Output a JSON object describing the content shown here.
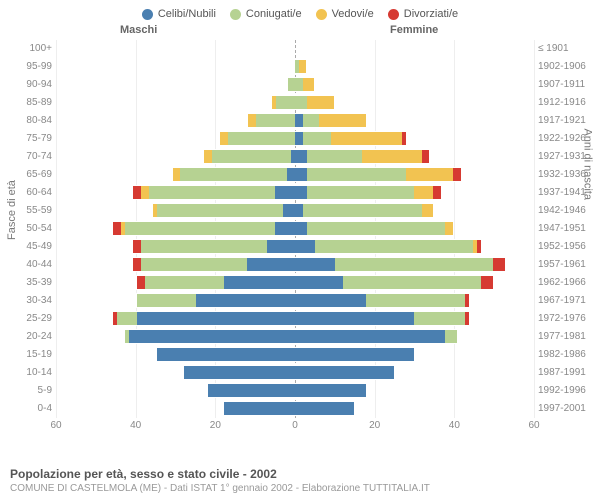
{
  "legend": [
    {
      "label": "Celibi/Nubili",
      "color": "#4a7fb0"
    },
    {
      "label": "Coniugati/e",
      "color": "#b6d292"
    },
    {
      "label": "Vedovi/e",
      "color": "#f2c351"
    },
    {
      "label": "Divorziati/e",
      "color": "#d63a32"
    }
  ],
  "headers": {
    "male": "Maschi",
    "female": "Femmine"
  },
  "axis_titles": {
    "left": "Fasce di età",
    "right": "Anni di nascita"
  },
  "xaxis": {
    "max": 60,
    "ticks": [
      60,
      40,
      20,
      0,
      20,
      40,
      60
    ]
  },
  "footer": {
    "line1": "Popolazione per età, sesso e stato civile - 2002",
    "line2": "COMUNE DI CASTELMOLA (ME) - Dati ISTAT 1° gennaio 2002 - Elaborazione TUTTITALIA.IT"
  },
  "colors": {
    "single": "#4a7fb0",
    "married": "#b6d292",
    "widowed": "#f2c351",
    "divorced": "#d63a32",
    "grid": "#eeeeee",
    "centerline": "#aaaaaa",
    "background": "#ffffff"
  },
  "rows": [
    {
      "age": "100+",
      "birth": "≤ 1901",
      "m": [
        0,
        0,
        0,
        0
      ],
      "f": [
        0,
        0,
        0,
        0
      ]
    },
    {
      "age": "95-99",
      "birth": "1902-1906",
      "m": [
        0,
        0,
        0,
        0
      ],
      "f": [
        0,
        1,
        2,
        0
      ]
    },
    {
      "age": "90-94",
      "birth": "1907-1911",
      "m": [
        0,
        2,
        0,
        0
      ],
      "f": [
        0,
        2,
        3,
        0
      ]
    },
    {
      "age": "85-89",
      "birth": "1912-1916",
      "m": [
        0,
        5,
        1,
        0
      ],
      "f": [
        0,
        3,
        7,
        0
      ]
    },
    {
      "age": "80-84",
      "birth": "1917-1921",
      "m": [
        0,
        10,
        2,
        0
      ],
      "f": [
        2,
        4,
        12,
        0
      ]
    },
    {
      "age": "75-79",
      "birth": "1922-1926",
      "m": [
        0,
        17,
        2,
        0
      ],
      "f": [
        2,
        7,
        18,
        1
      ]
    },
    {
      "age": "70-74",
      "birth": "1927-1931",
      "m": [
        1,
        20,
        2,
        0
      ],
      "f": [
        3,
        14,
        15,
        2
      ]
    },
    {
      "age": "65-69",
      "birth": "1932-1936",
      "m": [
        2,
        27,
        2,
        0
      ],
      "f": [
        3,
        25,
        12,
        2
      ]
    },
    {
      "age": "60-64",
      "birth": "1937-1941",
      "m": [
        5,
        32,
        2,
        2
      ],
      "f": [
        3,
        27,
        5,
        2
      ]
    },
    {
      "age": "55-59",
      "birth": "1942-1946",
      "m": [
        3,
        32,
        1,
        0
      ],
      "f": [
        2,
        30,
        3,
        0
      ]
    },
    {
      "age": "50-54",
      "birth": "1947-1951",
      "m": [
        5,
        38,
        1,
        2
      ],
      "f": [
        3,
        35,
        2,
        0
      ]
    },
    {
      "age": "45-49",
      "birth": "1952-1956",
      "m": [
        7,
        32,
        0,
        2
      ],
      "f": [
        5,
        40,
        1,
        1
      ]
    },
    {
      "age": "40-44",
      "birth": "1957-1961",
      "m": [
        12,
        27,
        0,
        2
      ],
      "f": [
        10,
        40,
        0,
        3
      ]
    },
    {
      "age": "35-39",
      "birth": "1962-1966",
      "m": [
        18,
        20,
        0,
        2
      ],
      "f": [
        12,
        35,
        0,
        3
      ]
    },
    {
      "age": "30-34",
      "birth": "1967-1971",
      "m": [
        25,
        15,
        0,
        0
      ],
      "f": [
        18,
        25,
        0,
        1
      ]
    },
    {
      "age": "25-29",
      "birth": "1972-1976",
      "m": [
        40,
        5,
        0,
        1
      ],
      "f": [
        30,
        13,
        0,
        1
      ]
    },
    {
      "age": "20-24",
      "birth": "1977-1981",
      "m": [
        42,
        1,
        0,
        0
      ],
      "f": [
        38,
        3,
        0,
        0
      ]
    },
    {
      "age": "15-19",
      "birth": "1982-1986",
      "m": [
        35,
        0,
        0,
        0
      ],
      "f": [
        30,
        0,
        0,
        0
      ]
    },
    {
      "age": "10-14",
      "birth": "1987-1991",
      "m": [
        28,
        0,
        0,
        0
      ],
      "f": [
        25,
        0,
        0,
        0
      ]
    },
    {
      "age": "5-9",
      "birth": "1992-1996",
      "m": [
        22,
        0,
        0,
        0
      ],
      "f": [
        18,
        0,
        0,
        0
      ]
    },
    {
      "age": "0-4",
      "birth": "1997-2001",
      "m": [
        18,
        0,
        0,
        0
      ],
      "f": [
        15,
        0,
        0,
        0
      ]
    }
  ]
}
